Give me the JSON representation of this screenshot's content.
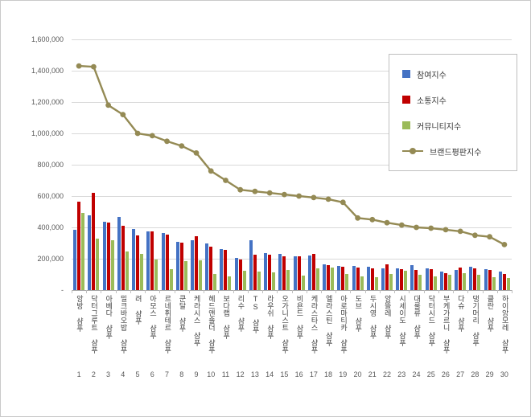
{
  "page": {
    "background": "#ffffff",
    "border_color": "#c9c9c9"
  },
  "chart_data": {
    "type": "bar",
    "subtype": "grouped-bars-with-overlay-line",
    "title": "",
    "xlabel": "",
    "ylabel": "",
    "grid": true,
    "legend_position": "top-right",
    "ylim": [
      0,
      1600000
    ],
    "ytick_interval": 200000,
    "ytick_labels": [
      "-",
      "200,000",
      "400,000",
      "600,000",
      "800,000",
      "1,000,000",
      "1,200,000",
      "1,400,000",
      "1,600,000"
    ],
    "grid_color": "#d9d9d9",
    "axis_color": "#a6a6a6",
    "categories": [
      "앙방 샴푸",
      "닥터그루트 샴푸",
      "아베다 샴푸",
      "밀크바오밥 샴푸",
      "려 샴푸",
      "아모스 샴푸",
      "르네휘테르 샴푸",
      "쿤달 샴푸",
      "케라시스 샴푸",
      "헤드앤숄더 샴푸",
      "보다랩 샴푸",
      "리수 샴푸",
      "TS 샴푸",
      "라우쉬 샴푸",
      "오가니스트 샴푸",
      "비욘드 샴푸",
      "케라스타스 샴푸",
      "엘라스틴 샴푸",
      "아로마티카 샴푸",
      "도브 샴푸",
      "두시영 샴푸",
      "앙뜰레 샴푸",
      "시세이도 샴푸",
      "대룰류 샴푸",
      "닥터시드 샴푸",
      "부케가르니 샴푸",
      "다슈 샴푸",
      "댕기머리 샴푸",
      "클란 샴푸",
      "하이앙모레 샴푸"
    ],
    "ranks": [
      "1",
      "2",
      "3",
      "4",
      "5",
      "6",
      "7",
      "8",
      "9",
      "10",
      "11",
      "12",
      "13",
      "14",
      "15",
      "16",
      "17",
      "18",
      "19",
      "20",
      "21",
      "22",
      "23",
      "24",
      "25",
      "26",
      "27",
      "28",
      "29",
      "30"
    ],
    "series": [
      {
        "name": "참여지수",
        "key": "participation",
        "type": "bar",
        "color": "#4472C4",
        "values": [
          385000,
          475000,
          435000,
          465000,
          390000,
          375000,
          365000,
          310000,
          320000,
          300000,
          260000,
          205000,
          320000,
          235000,
          230000,
          215000,
          220000,
          165000,
          155000,
          155000,
          150000,
          140000,
          140000,
          160000,
          140000,
          120000,
          130000,
          150000,
          135000,
          120000
        ]
      },
      {
        "name": "소통지수",
        "key": "communication",
        "type": "bar",
        "color": "#C00000",
        "values": [
          565000,
          620000,
          430000,
          410000,
          350000,
          375000,
          355000,
          305000,
          345000,
          275000,
          255000,
          195000,
          225000,
          225000,
          215000,
          215000,
          230000,
          160000,
          150000,
          145000,
          140000,
          165000,
          135000,
          130000,
          135000,
          110000,
          145000,
          140000,
          130000,
          105000
        ]
      },
      {
        "name": "커뮤니티지수",
        "key": "community",
        "type": "bar",
        "color": "#9BBB59",
        "values": [
          490000,
          330000,
          320000,
          245000,
          230000,
          195000,
          135000,
          185000,
          190000,
          105000,
          85000,
          125000,
          120000,
          115000,
          130000,
          90000,
          140000,
          145000,
          105000,
          85000,
          80000,
          105000,
          125000,
          100000,
          85000,
          100000,
          110000,
          95000,
          80000,
          75000
        ]
      },
      {
        "name": "브랜드평판지수",
        "key": "brand-index",
        "type": "line",
        "color": "#948A54",
        "values": [
          1430000,
          1425000,
          1180000,
          1120000,
          1000000,
          985000,
          950000,
          920000,
          875000,
          760000,
          700000,
          640000,
          630000,
          620000,
          610000,
          600000,
          590000,
          580000,
          560000,
          460000,
          450000,
          430000,
          415000,
          400000,
          395000,
          385000,
          375000,
          350000,
          340000,
          290000
        ]
      }
    ]
  }
}
